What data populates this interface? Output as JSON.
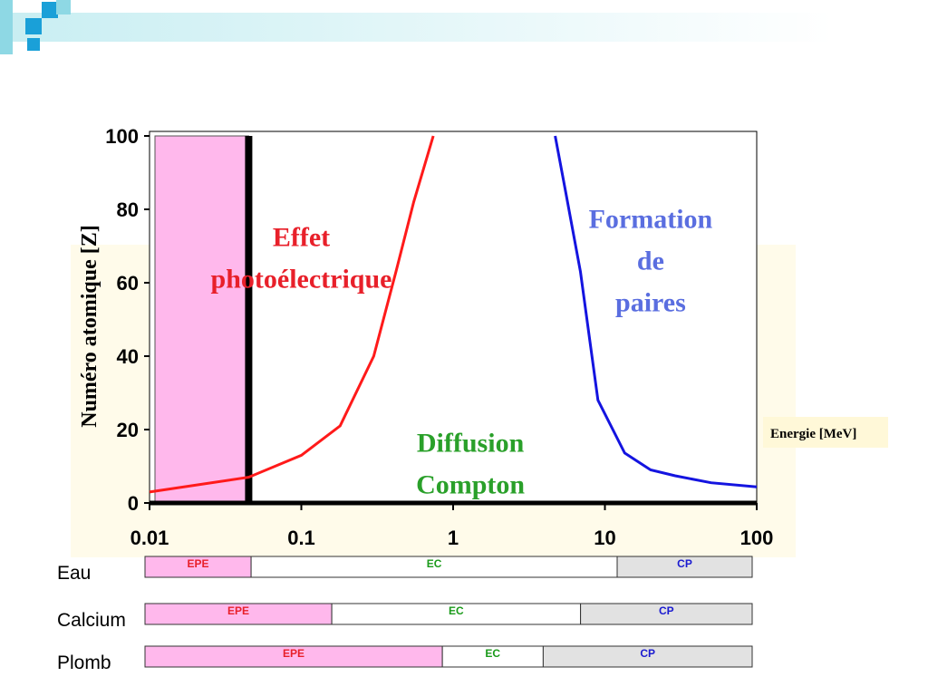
{
  "chart_data": [
    {
      "type": "line",
      "x_label": "Energie [MeV]",
      "y_label": "Numéro atomique [Z]",
      "xlog": true,
      "xlim": [
        0.01,
        100
      ],
      "xticks": [
        0.01,
        0.1,
        1,
        10,
        100
      ],
      "ylim": [
        0,
        100
      ],
      "yticks": [
        0,
        20,
        40,
        60,
        80,
        100
      ],
      "highlight": {
        "x": [
          0.01,
          0.045
        ],
        "color": "#ffb8ec"
      },
      "annotations": [
        {
          "lines": [
            "Effet",
            "photoélectrique"
          ],
          "color": "#e8202a",
          "x": 0.1,
          "y": 70
        },
        {
          "lines": [
            "Diffusion",
            "Compton"
          ],
          "color": "#2aa02a",
          "x": 1.3,
          "y": 14
        },
        {
          "lines": [
            "Formation",
            "de",
            "paires"
          ],
          "color": "#5a6ee0",
          "x": 20,
          "y": 75
        }
      ],
      "series": [
        {
          "color": "#ff1a1a",
          "x": [
            0.01,
            0.045,
            0.1,
            0.18,
            0.3,
            0.42,
            0.55,
            0.74
          ],
          "values": [
            3,
            7,
            13,
            21,
            40,
            63,
            82,
            100
          ]
        },
        {
          "color": "#1414e0",
          "x": [
            4.7,
            5.5,
            6.9,
            9,
            13.5,
            20,
            29,
            50,
            100
          ],
          "values": [
            100,
            85,
            63,
            28,
            13.6,
            9,
            7.4,
            5.5,
            4.4
          ]
        }
      ]
    },
    {
      "type": "range_bar",
      "xlog": true,
      "xlim": [
        0.01,
        100
      ],
      "categories": [
        "Eau",
        "Calcium",
        "Plomb"
      ],
      "series": [
        {
          "name": "EPE",
          "color": "#ffb8ec",
          "label_color": "#e8202a",
          "values": [
            [
              0.01,
              0.05
            ],
            [
              0.01,
              0.17
            ],
            [
              0.01,
              0.91
            ]
          ]
        },
        {
          "name": "EC",
          "color": "#ffffff",
          "label_color": "#1a9a1a",
          "values": [
            [
              0.05,
              12.9
            ],
            [
              0.17,
              7.4
            ],
            [
              0.91,
              4.2
            ]
          ]
        },
        {
          "name": "CP",
          "color": "#e2e2e2",
          "label_color": "#1a1ad0",
          "values": [
            [
              12.9,
              100
            ],
            [
              7.4,
              100
            ],
            [
              4.2,
              100
            ]
          ]
        }
      ]
    }
  ]
}
